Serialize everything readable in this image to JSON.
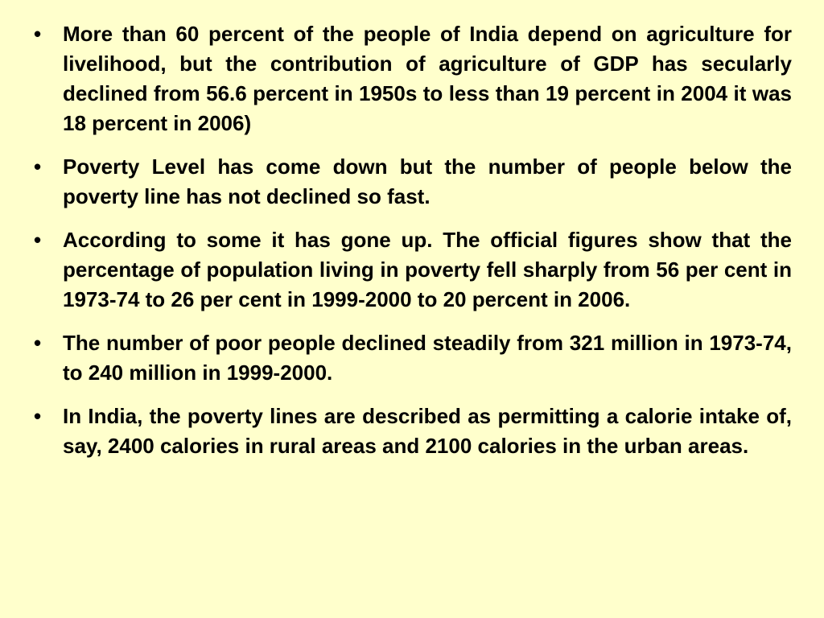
{
  "slide": {
    "bullet_symbol": "•",
    "bullets": [
      {
        "text": "More than 60 percent of the people of India depend on agriculture for livelihood, but the contribution of agriculture of GDP has secularly declined from 56.6 percent in 1950s to less than 19 percent in 2004 it was 18 percent in 2006)"
      },
      {
        "text": "Poverty Level has come down but the number of people below the poverty line has not declined so fast."
      },
      {
        "text": "According to some it has gone up. The official figures show that the percentage of population living in poverty fell sharply from 56 per cent in 1973-74 to 26 per cent in 1999-2000 to 20 percent in 2006."
      },
      {
        "text": "The number of poor people declined steadily from 321 million in 1973-74, to 240 million in 1999-2000."
      },
      {
        "text": "In India, the poverty lines are described as permitting a calorie intake of, say, 2400 calories in rural areas and 2100 calories in the urban areas."
      }
    ]
  }
}
